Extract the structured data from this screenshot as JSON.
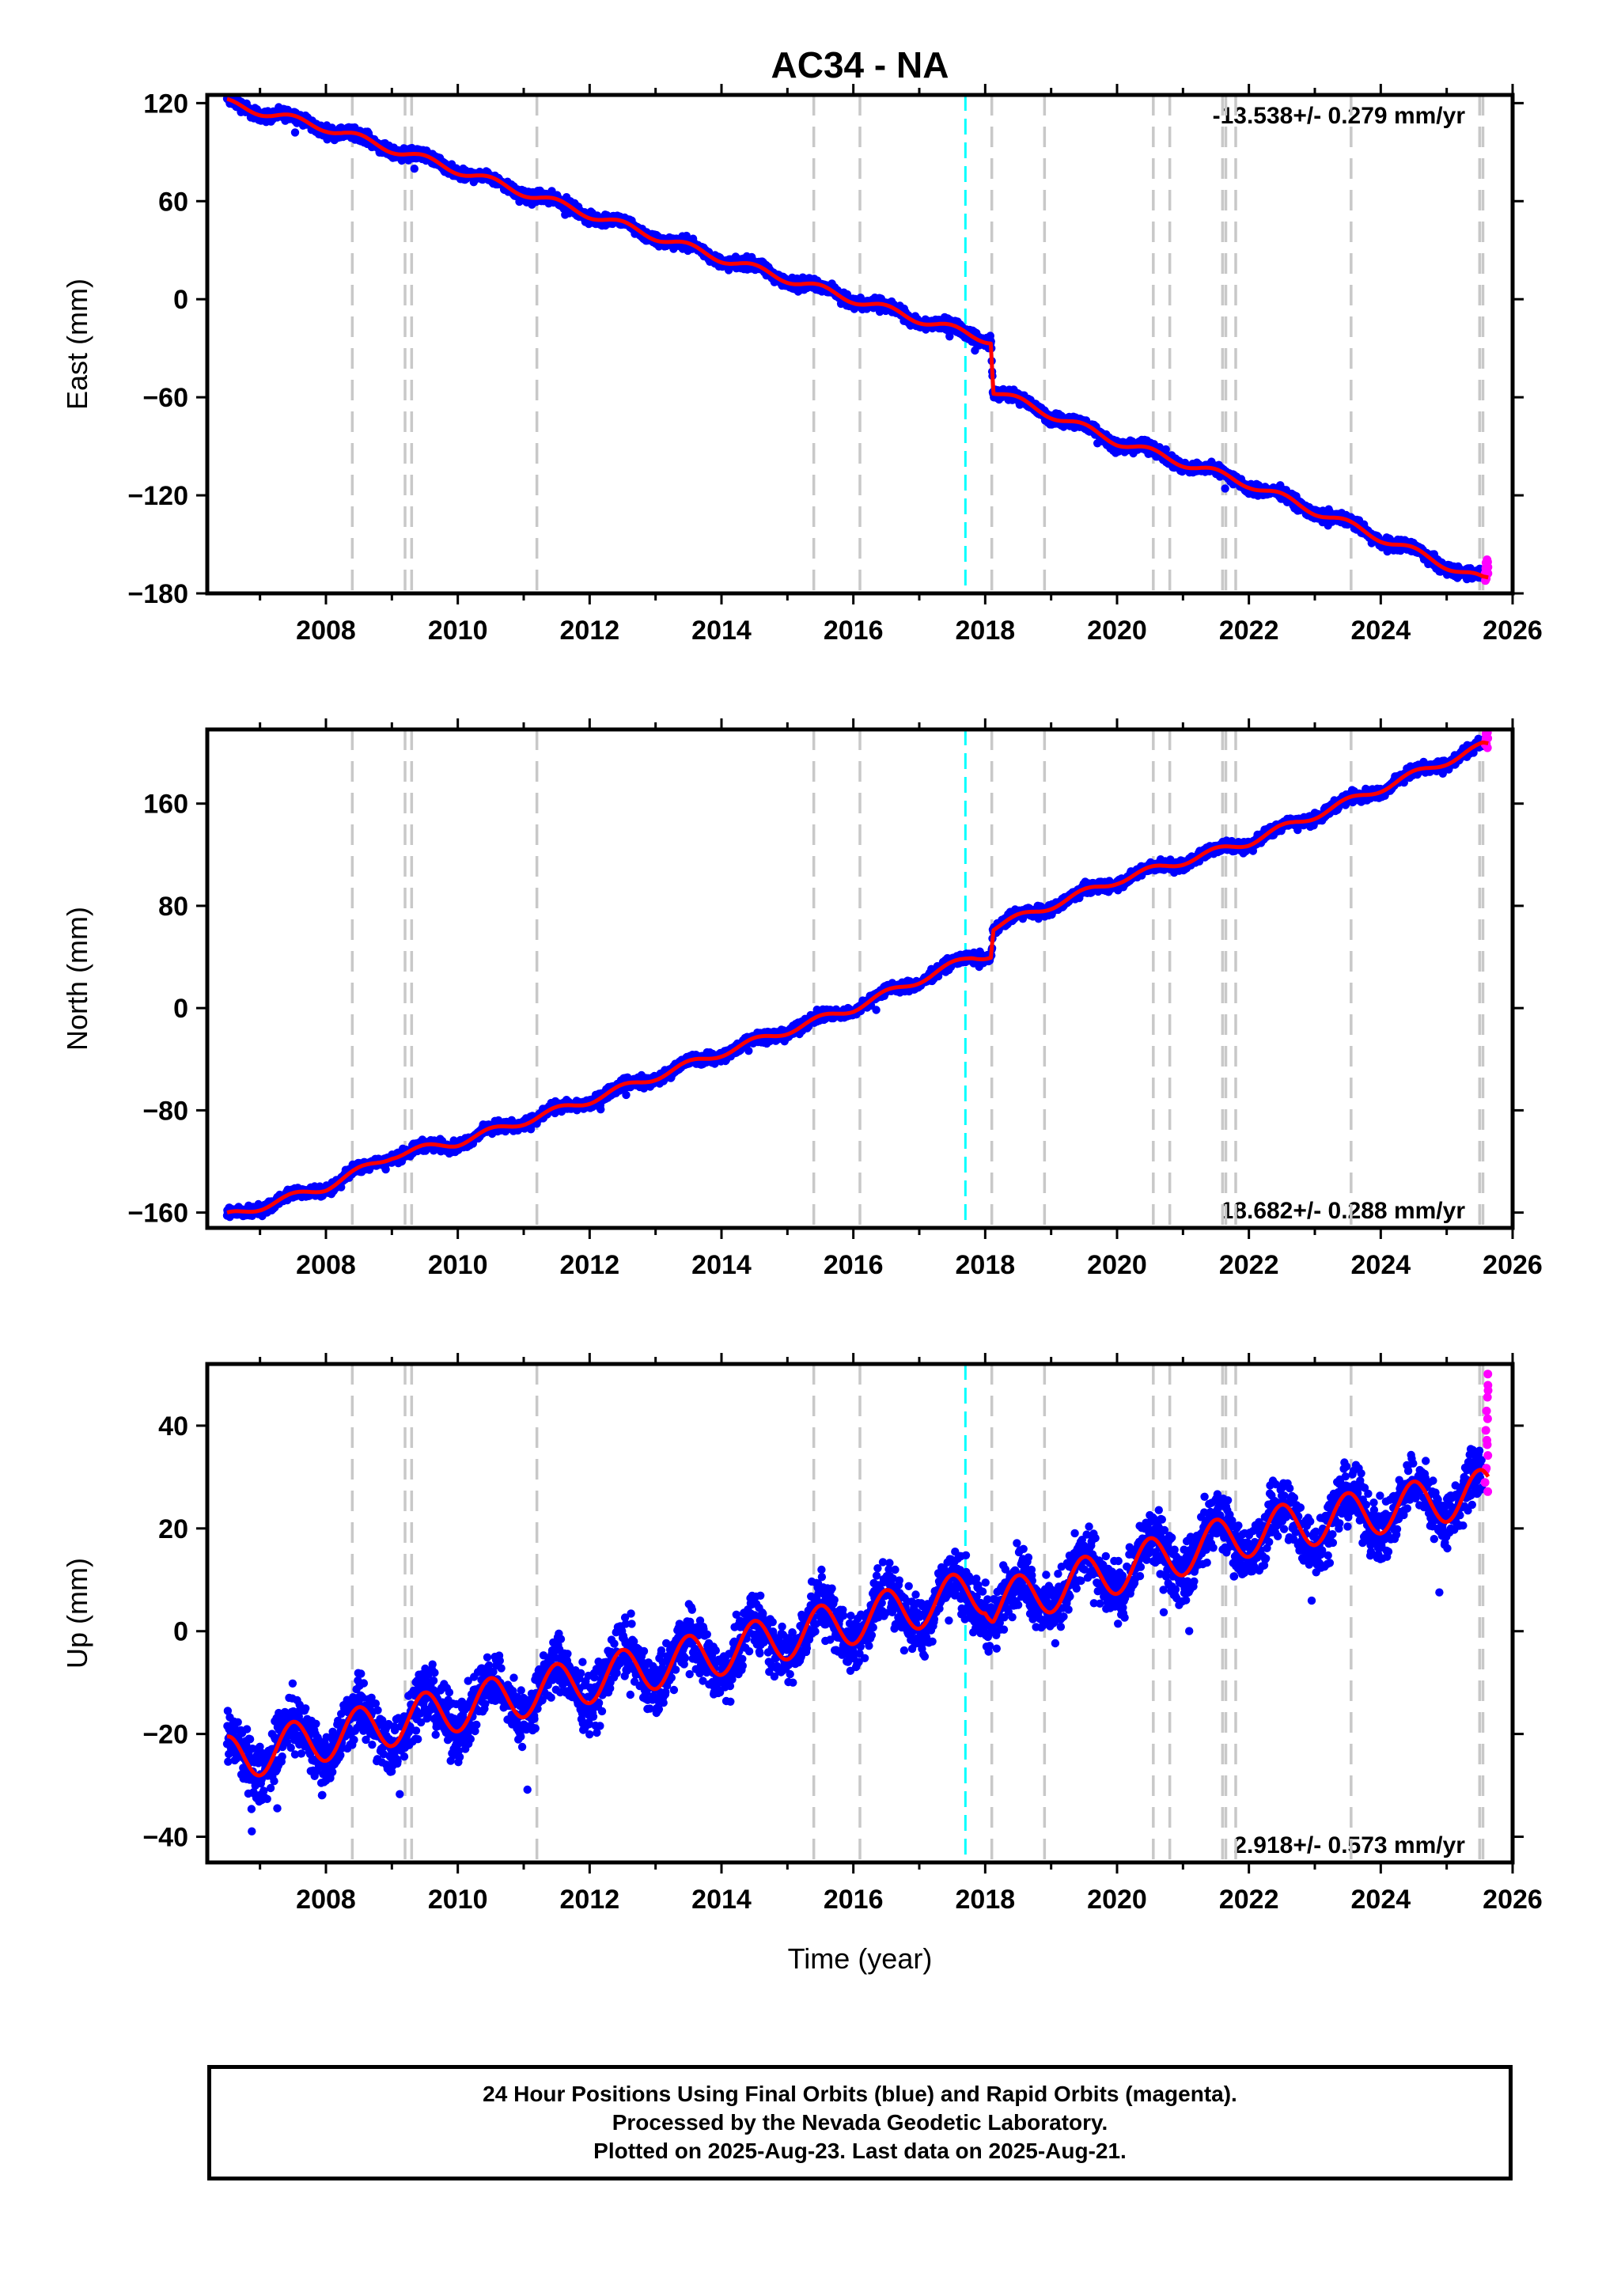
{
  "figure": {
    "title": "AC34 - NA",
    "xlabel": "Time (year)",
    "caption": [
      "24 Hour Positions Using Final Orbits (blue) and Rapid Orbits (magenta).",
      "Processed by the Nevada Geodetic Laboratory.",
      "Plotted on 2025-Aug-23. Last data on 2025-Aug-21."
    ]
  },
  "colors": {
    "final_orbits": "#0000ff",
    "rapid_orbits": "#ff00ff",
    "model": "#ff0000",
    "event_line": "#c8c8c8",
    "equipment_line": "#00ffff"
  },
  "chart_data": [
    {
      "type": "scatter",
      "name": "east",
      "ylabel": "East (mm)",
      "rate_text": "-13.538+/- 0.279 mm/yr",
      "xlim": [
        2006.2,
        2026.0
      ],
      "ylim": [
        -180,
        125
      ],
      "xticks": [
        2008,
        2010,
        2012,
        2014,
        2016,
        2018,
        2020,
        2022,
        2024,
        2026
      ],
      "yticks": [
        -180,
        -120,
        -60,
        0,
        60,
        120
      ],
      "ytick_labels": [
        "−180",
        "−120",
        "−60",
        "0",
        "60",
        "120"
      ],
      "x_start": 2006.5,
      "x_end": 2025.55,
      "step_at": 2018.1,
      "step": -31,
      "model_knots": [
        [
          2006.5,
          120
        ],
        [
          2008.0,
          105
        ],
        [
          2010.0,
          79
        ],
        [
          2012.0,
          52
        ],
        [
          2014.0,
          25
        ],
        [
          2016.0,
          0
        ],
        [
          2017.8,
          -22
        ],
        [
          2018.09,
          -25
        ],
        [
          2018.12,
          -56
        ],
        [
          2020.0,
          -87
        ],
        [
          2022.0,
          -113
        ],
        [
          2024.0,
          -146
        ],
        [
          2025.55,
          -172
        ]
      ],
      "seasonal_amp": 2.5,
      "scatter": 2.5,
      "rapid": {
        "x": [
          2025.58,
          2025.63
        ],
        "y": [
          -172,
          -160
        ]
      }
    },
    {
      "type": "scatter",
      "name": "north",
      "ylabel": "North (mm)",
      "rate_text": "18.682+/- 0.288 mm/yr",
      "xlim": [
        2006.2,
        2026.0
      ],
      "ylim": [
        -172,
        218
      ],
      "xticks": [
        2008,
        2010,
        2012,
        2014,
        2016,
        2018,
        2020,
        2022,
        2024,
        2026
      ],
      "yticks": [
        -160,
        -80,
        0,
        80,
        160
      ],
      "ytick_labels": [
        "−160",
        "−80",
        "0",
        "80",
        "160"
      ],
      "x_start": 2006.5,
      "x_end": 2025.55,
      "step_at": 2018.1,
      "step": 23,
      "model_knots": [
        [
          2006.5,
          -163
        ],
        [
          2008.0,
          -140
        ],
        [
          2009.0,
          -115
        ],
        [
          2010.0,
          -105
        ],
        [
          2012.0,
          -72
        ],
        [
          2014.0,
          -35
        ],
        [
          2016.0,
          0
        ],
        [
          2017.8,
          40
        ],
        [
          2018.09,
          42
        ],
        [
          2018.12,
          63
        ],
        [
          2020.0,
          100
        ],
        [
          2022.0,
          130
        ],
        [
          2024.0,
          172
        ],
        [
          2025.55,
          205
        ]
      ],
      "seasonal_amp": 3,
      "scatter": 3,
      "rapid": {
        "x": [
          2025.58,
          2025.63
        ],
        "y": [
          205,
          218
        ]
      }
    },
    {
      "type": "scatter",
      "name": "up",
      "ylabel": "Up (mm)",
      "rate_text": "2.918+/- 0.573 mm/yr",
      "xlim": [
        2006.2,
        2026.0
      ],
      "ylim": [
        -45,
        52
      ],
      "xticks": [
        2008,
        2010,
        2012,
        2014,
        2016,
        2018,
        2020,
        2022,
        2024,
        2026
      ],
      "yticks": [
        -40,
        -20,
        0,
        20,
        40
      ],
      "ytick_labels": [
        "−40",
        "−20",
        "0",
        "20",
        "40"
      ],
      "x_start": 2006.5,
      "x_end": 2025.55,
      "step_at": 2018.1,
      "step": -3,
      "model_knots": [
        [
          2006.5,
          -25
        ],
        [
          2010.0,
          -15
        ],
        [
          2014.0,
          -4
        ],
        [
          2018.0,
          8
        ],
        [
          2018.12,
          5
        ],
        [
          2022.0,
          19
        ],
        [
          2025.55,
          27
        ]
      ],
      "seasonal_amp": 4.5,
      "scatter": 4,
      "rapid": {
        "x": [
          2025.58,
          2025.63
        ],
        "y": [
          27,
          50
        ]
      }
    }
  ],
  "event_lines": {
    "gray": [
      2008.4,
      2009.2,
      2009.3,
      2011.2,
      2015.4,
      2016.1,
      2018.1,
      2018.9,
      2020.55,
      2020.8,
      2021.6,
      2021.65,
      2021.8,
      2023.55,
      2025.5,
      2025.55
    ],
    "cyan": [
      2017.7
    ]
  }
}
